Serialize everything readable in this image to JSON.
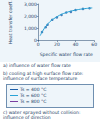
{
  "chart_data": {
    "type": "scatter",
    "x_label": "Specific water flow rate",
    "y_label": "Heat transfer coeff.",
    "xlim": [
      0,
      60
    ],
    "xticks": [
      0,
      20,
      40,
      60
    ],
    "ylim": [
      0,
      3000
    ],
    "yticks": [
      0,
      1000,
      2000,
      3000
    ],
    "grid": false,
    "series": [
      {
        "type": "scatter",
        "marker": "circle",
        "color": "#1f5fa8",
        "x": [
          4,
          8,
          10,
          15,
          20,
          25,
          30,
          35,
          40,
          48,
          55
        ],
        "values": [
          700,
          1100,
          1300,
          1700,
          1900,
          2100,
          2300,
          2350,
          2500,
          2600,
          2650
        ]
      },
      {
        "type": "line",
        "line_style": "solid",
        "color": "#29a3d6",
        "x": [
          2,
          10,
          20,
          30,
          40,
          50,
          58
        ],
        "values": [
          400,
          1350,
          1950,
          2300,
          2500,
          2620,
          2680
        ]
      }
    ]
  },
  "captions": [
    "a) influence of water flow rate",
    "c) water sprayed without collision: influence of direction"
  ],
  "legend_box": {
    "title": "b) cooling at high surface flow rate: influence of surface temperature",
    "items": [
      {
        "label": "Ts = 400 °C",
        "color": "#1f5fa8"
      },
      {
        "label": "Ts = 600 °C",
        "color": "#29a3d6"
      },
      {
        "label": "Ts = 800 °C",
        "color": "#7a3fa0"
      }
    ]
  }
}
